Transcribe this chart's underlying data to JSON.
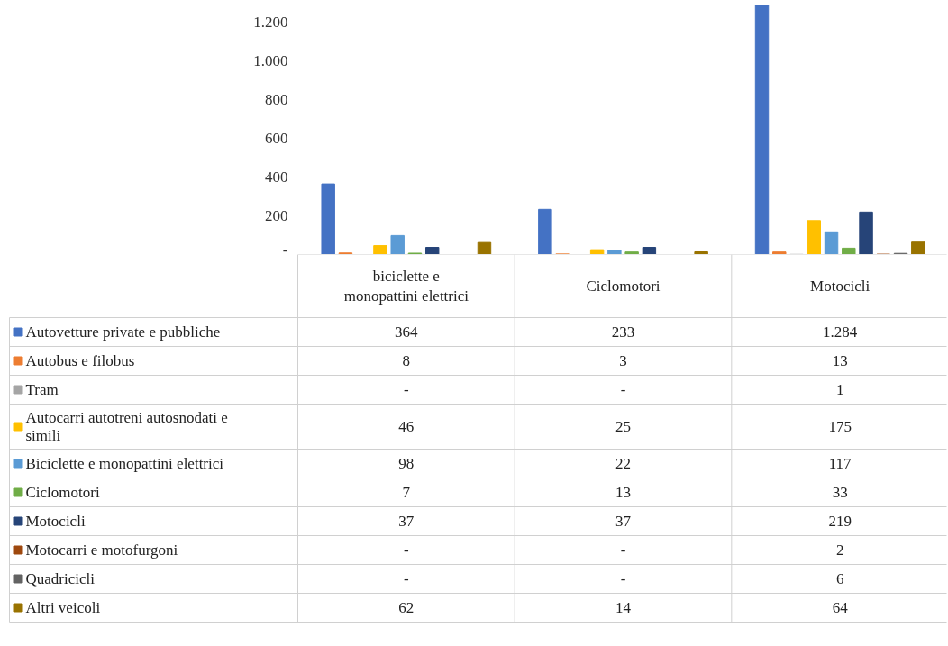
{
  "chart_data": {
    "type": "bar",
    "categories": [
      "biciclette e monopattini elettrici",
      "Ciclomotori",
      "Motocicli"
    ],
    "series": [
      {
        "name": "Autovetture private e pubbliche",
        "color": "#4472c4",
        "values": [
          364,
          233,
          1284
        ],
        "value_labels": [
          "364",
          "233",
          "1.284"
        ]
      },
      {
        "name": "Autobus e filobus",
        "color": "#ed7d31",
        "values": [
          8,
          3,
          13
        ],
        "value_labels": [
          "8",
          "3",
          "13"
        ]
      },
      {
        "name": "Tram",
        "color": "#a5a5a5",
        "values": [
          0,
          0,
          1
        ],
        "value_labels": [
          "-",
          "-",
          "1"
        ]
      },
      {
        "name": "Autocarri autotreni autosnodati e simili",
        "color": "#ffc000",
        "values": [
          46,
          25,
          175
        ],
        "value_labels": [
          "46",
          "25",
          "175"
        ]
      },
      {
        "name": "Biciclette e monopattini elettrici",
        "color": "#5b9bd5",
        "values": [
          98,
          22,
          117
        ],
        "value_labels": [
          "98",
          "22",
          "117"
        ]
      },
      {
        "name": "Ciclomotori",
        "color": "#70ad47",
        "values": [
          7,
          13,
          33
        ],
        "value_labels": [
          "7",
          "13",
          "33"
        ]
      },
      {
        "name": "Motocicli",
        "color": "#264478",
        "values": [
          37,
          37,
          219
        ],
        "value_labels": [
          "37",
          "37",
          "219"
        ]
      },
      {
        "name": "Motocarri e motofurgoni",
        "color": "#9e480e",
        "values": [
          0,
          0,
          2
        ],
        "value_labels": [
          "-",
          "-",
          "2"
        ]
      },
      {
        "name": "Quadricicli",
        "color": "#636363",
        "values": [
          0,
          0,
          6
        ],
        "value_labels": [
          "-",
          "-",
          "6"
        ]
      },
      {
        "name": "Altri veicoli",
        "color": "#997300",
        "values": [
          62,
          14,
          64
        ],
        "value_labels": [
          "62",
          "14",
          "64"
        ]
      }
    ],
    "ylim": [
      0,
      1300
    ],
    "yticks": [
      {
        "value": 0,
        "label": "-"
      },
      200,
      400,
      600,
      800,
      {
        "value": 1000,
        "label": "1.000"
      },
      {
        "value": 1200,
        "label": "1.200"
      }
    ],
    "grid": false,
    "legend": "bottom"
  }
}
